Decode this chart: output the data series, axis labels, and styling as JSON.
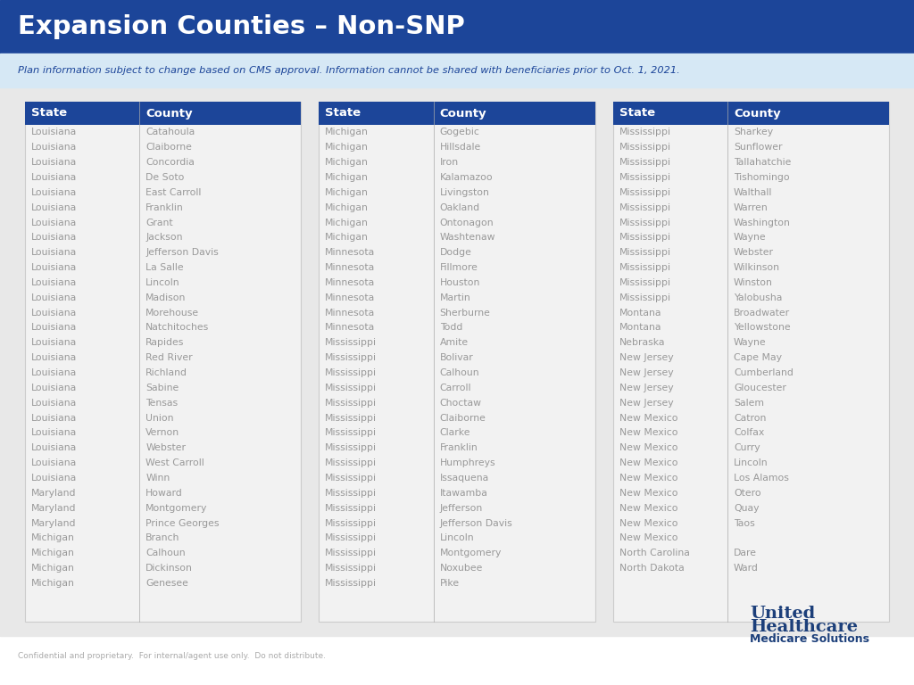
{
  "title": "Expansion Counties – Non-SNP",
  "subtitle": "Plan information subject to change based on CMS approval. Information cannot be shared with beneficiaries prior to Oct. 1, 2021.",
  "title_bg": "#1c4599",
  "title_text": "#ffffff",
  "subtitle_bg": "#d6e8f5",
  "subtitle_text": "#1c4599",
  "content_bg": "#e8e8e8",
  "header_bg": "#1c4599",
  "header_text": "#ffffff",
  "panel_bg": "#f2f2f2",
  "panel_border": "#cccccc",
  "row_text": "#999999",
  "col1_header": "State",
  "col2_header": "County",
  "footer_text": "Confidential and proprietary.  For internal/agent use only.  Do not distribute.",
  "logo_line1": "United",
  "logo_line2": "Healthcare",
  "logo_line3": "Medicare Solutions",
  "logo_color": "#1c3f7a",
  "columns": [
    {
      "states": [
        "Louisiana",
        "Louisiana",
        "Louisiana",
        "Louisiana",
        "Louisiana",
        "Louisiana",
        "Louisiana",
        "Louisiana",
        "Louisiana",
        "Louisiana",
        "Louisiana",
        "Louisiana",
        "Louisiana",
        "Louisiana",
        "Louisiana",
        "Louisiana",
        "Louisiana",
        "Louisiana",
        "Louisiana",
        "Louisiana",
        "Louisiana",
        "Louisiana",
        "Louisiana",
        "Louisiana",
        "Maryland",
        "Maryland",
        "Maryland",
        "Michigan",
        "Michigan",
        "Michigan",
        "Michigan"
      ],
      "counties": [
        "Catahoula",
        "Claiborne",
        "Concordia",
        "De Soto",
        "East Carroll",
        "Franklin",
        "Grant",
        "Jackson",
        "Jefferson Davis",
        "La Salle",
        "Lincoln",
        "Madison",
        "Morehouse",
        "Natchitoches",
        "Rapides",
        "Red River",
        "Richland",
        "Sabine",
        "Tensas",
        "Union",
        "Vernon",
        "Webster",
        "West Carroll",
        "Winn",
        "Howard",
        "Montgomery",
        "Prince Georges",
        "Branch",
        "Calhoun",
        "Dickinson",
        "Genesee"
      ]
    },
    {
      "states": [
        "Michigan",
        "Michigan",
        "Michigan",
        "Michigan",
        "Michigan",
        "Michigan",
        "Michigan",
        "Michigan",
        "Minnesota",
        "Minnesota",
        "Minnesota",
        "Minnesota",
        "Minnesota",
        "Minnesota",
        "Mississippi",
        "Mississippi",
        "Mississippi",
        "Mississippi",
        "Mississippi",
        "Mississippi",
        "Mississippi",
        "Mississippi",
        "Mississippi",
        "Mississippi",
        "Mississippi",
        "Mississippi",
        "Mississippi",
        "Mississippi",
        "Mississippi",
        "Mississippi",
        "Mississippi"
      ],
      "counties": [
        "Gogebic",
        "Hillsdale",
        "Iron",
        "Kalamazoo",
        "Livingston",
        "Oakland",
        "Ontonagon",
        "Washtenaw",
        "Dodge",
        "Fillmore",
        "Houston",
        "Martin",
        "Sherburne",
        "Todd",
        "Amite",
        "Bolivar",
        "Calhoun",
        "Carroll",
        "Choctaw",
        "Claiborne",
        "Clarke",
        "Franklin",
        "Humphreys",
        "Issaquena",
        "Itawamba",
        "Jefferson",
        "Jefferson Davis",
        "Lincoln",
        "Montgomery",
        "Noxubee",
        "Pike"
      ]
    },
    {
      "states": [
        "Mississippi",
        "Mississippi",
        "Mississippi",
        "Mississippi",
        "Mississippi",
        "Mississippi",
        "Mississippi",
        "Mississippi",
        "Mississippi",
        "Mississippi",
        "Mississippi",
        "Mississippi",
        "Montana",
        "Montana",
        "Nebraska",
        "New Jersey",
        "New Jersey",
        "New Jersey",
        "New Jersey",
        "New Mexico",
        "New Mexico",
        "New Mexico",
        "New Mexico",
        "New Mexico",
        "New Mexico",
        "New Mexico",
        "New Mexico",
        "New Mexico",
        "North Carolina",
        "North Dakota"
      ],
      "counties": [
        "Sharkey",
        "Sunflower",
        "Tallahatchie",
        "Tishomingo",
        "Walthall",
        "Warren",
        "Washington",
        "Wayne",
        "Webster",
        "Wilkinson",
        "Winston",
        "Yalobusha",
        "Broadwater",
        "Yellowstone",
        "Wayne",
        "Cape May",
        "Cumberland",
        "Gloucester",
        "Salem",
        "Catron",
        "Colfax",
        "Curry",
        "Lincoln",
        "Los Alamos",
        "Otero",
        "Quay",
        "Taos",
        "",
        "Dare",
        "Ward"
      ]
    }
  ]
}
